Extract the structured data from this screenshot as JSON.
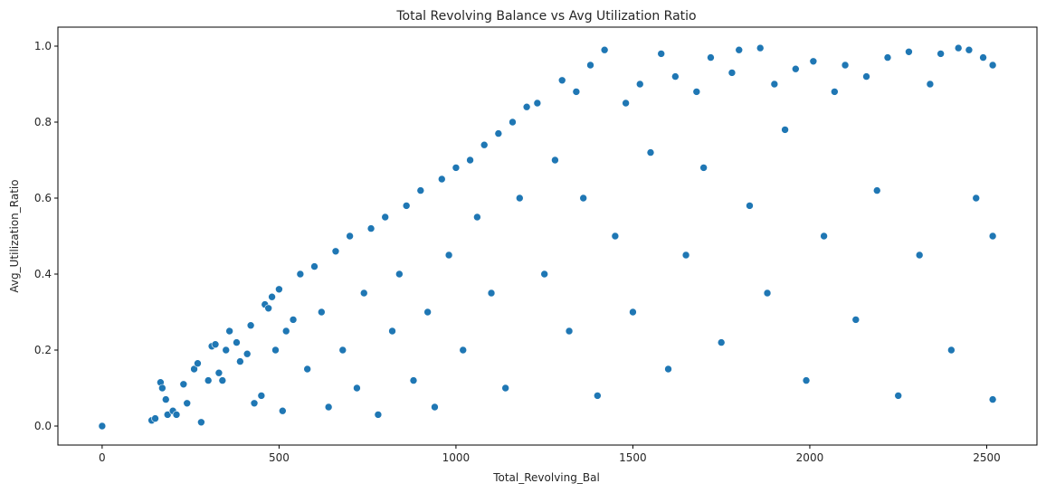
{
  "chart_data": {
    "type": "scatter",
    "title": "Total Revolving Balance vs Avg Utilization Ratio",
    "xlabel": "Total_Revolving_Bal",
    "ylabel": "Avg_Utilization_Ratio",
    "xlim": [
      -125,
      2642
    ],
    "ylim": [
      -0.05,
      1.05
    ],
    "xticks": [
      0,
      500,
      1000,
      1500,
      2000,
      2500
    ],
    "yticks": [
      0.0,
      0.2,
      0.4,
      0.6,
      0.8,
      1.0
    ],
    "xtick_labels": [
      "0",
      "500",
      "1000",
      "1500",
      "2000",
      "2500"
    ],
    "ytick_labels": [
      "0.0",
      "0.2",
      "0.4",
      "0.6",
      "0.8",
      "1.0"
    ],
    "marker_color": "#1f77b4",
    "marker_edge_color": "#ffffff",
    "grid": false,
    "legend": "none",
    "points": [
      [
        0,
        0.0
      ],
      [
        140,
        0.015
      ],
      [
        150,
        0.02
      ],
      [
        165,
        0.115
      ],
      [
        170,
        0.1
      ],
      [
        180,
        0.07
      ],
      [
        185,
        0.03
      ],
      [
        200,
        0.04
      ],
      [
        210,
        0.03
      ],
      [
        230,
        0.11
      ],
      [
        240,
        0.06
      ],
      [
        260,
        0.15
      ],
      [
        270,
        0.165
      ],
      [
        280,
        0.01
      ],
      [
        300,
        0.12
      ],
      [
        310,
        0.21
      ],
      [
        320,
        0.215
      ],
      [
        330,
        0.14
      ],
      [
        340,
        0.12
      ],
      [
        350,
        0.2
      ],
      [
        360,
        0.25
      ],
      [
        380,
        0.22
      ],
      [
        390,
        0.17
      ],
      [
        410,
        0.19
      ],
      [
        420,
        0.265
      ],
      [
        430,
        0.06
      ],
      [
        450,
        0.08
      ],
      [
        460,
        0.32
      ],
      [
        470,
        0.31
      ],
      [
        480,
        0.34
      ],
      [
        490,
        0.2
      ],
      [
        500,
        0.36
      ],
      [
        510,
        0.04
      ],
      [
        520,
        0.25
      ],
      [
        540,
        0.28
      ],
      [
        560,
        0.4
      ],
      [
        580,
        0.15
      ],
      [
        600,
        0.42
      ],
      [
        620,
        0.3
      ],
      [
        640,
        0.05
      ],
      [
        660,
        0.46
      ],
      [
        680,
        0.2
      ],
      [
        700,
        0.5
      ],
      [
        720,
        0.1
      ],
      [
        740,
        0.35
      ],
      [
        760,
        0.52
      ],
      [
        780,
        0.03
      ],
      [
        800,
        0.55
      ],
      [
        820,
        0.25
      ],
      [
        840,
        0.4
      ],
      [
        860,
        0.58
      ],
      [
        880,
        0.12
      ],
      [
        900,
        0.62
      ],
      [
        920,
        0.3
      ],
      [
        940,
        0.05
      ],
      [
        960,
        0.65
      ],
      [
        980,
        0.45
      ],
      [
        1000,
        0.68
      ],
      [
        1020,
        0.2
      ],
      [
        1040,
        0.7
      ],
      [
        1060,
        0.55
      ],
      [
        1080,
        0.74
      ],
      [
        1100,
        0.35
      ],
      [
        1120,
        0.77
      ],
      [
        1140,
        0.1
      ],
      [
        1160,
        0.8
      ],
      [
        1180,
        0.6
      ],
      [
        1200,
        0.84
      ],
      [
        1230,
        0.85
      ],
      [
        1250,
        0.4
      ],
      [
        1280,
        0.7
      ],
      [
        1300,
        0.91
      ],
      [
        1320,
        0.25
      ],
      [
        1340,
        0.88
      ],
      [
        1360,
        0.6
      ],
      [
        1380,
        0.95
      ],
      [
        1400,
        0.08
      ],
      [
        1420,
        0.99
      ],
      [
        1450,
        0.5
      ],
      [
        1480,
        0.85
      ],
      [
        1500,
        0.3
      ],
      [
        1520,
        0.9
      ],
      [
        1550,
        0.72
      ],
      [
        1580,
        0.98
      ],
      [
        1600,
        0.15
      ],
      [
        1620,
        0.92
      ],
      [
        1650,
        0.45
      ],
      [
        1680,
        0.88
      ],
      [
        1700,
        0.68
      ],
      [
        1720,
        0.97
      ],
      [
        1750,
        0.22
      ],
      [
        1780,
        0.93
      ],
      [
        1800,
        0.99
      ],
      [
        1830,
        0.58
      ],
      [
        1860,
        0.995
      ],
      [
        1880,
        0.35
      ],
      [
        1900,
        0.9
      ],
      [
        1930,
        0.78
      ],
      [
        1960,
        0.94
      ],
      [
        1990,
        0.12
      ],
      [
        2010,
        0.96
      ],
      [
        2040,
        0.5
      ],
      [
        2070,
        0.88
      ],
      [
        2100,
        0.95
      ],
      [
        2130,
        0.28
      ],
      [
        2160,
        0.92
      ],
      [
        2190,
        0.62
      ],
      [
        2220,
        0.97
      ],
      [
        2250,
        0.08
      ],
      [
        2280,
        0.985
      ],
      [
        2310,
        0.45
      ],
      [
        2340,
        0.9
      ],
      [
        2370,
        0.98
      ],
      [
        2400,
        0.2
      ],
      [
        2420,
        0.995
      ],
      [
        2450,
        0.99
      ],
      [
        2470,
        0.6
      ],
      [
        2490,
        0.97
      ],
      [
        2517,
        0.95
      ],
      [
        2517,
        0.07
      ],
      [
        2517,
        0.5
      ]
    ]
  }
}
